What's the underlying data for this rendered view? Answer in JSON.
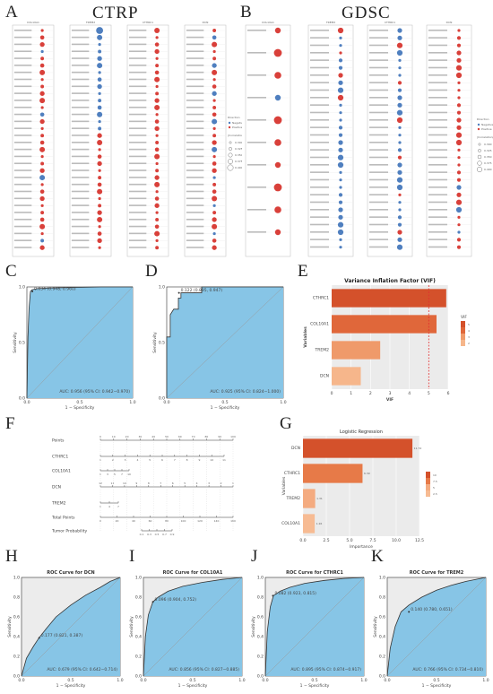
{
  "letters": {
    "A": "A",
    "B": "B",
    "C": "C",
    "D": "D",
    "E": "E",
    "F": "F",
    "G": "G",
    "H": "H",
    "I": "I",
    "J": "J",
    "K": "K"
  },
  "titles": {
    "ctrp": "CTRP",
    "gdsc": "GDSC"
  },
  "dot_panels": {
    "ctrp": [
      "COL10A1",
      "TREM2",
      "CTHRC1",
      "DCN"
    ],
    "gdsc": [
      "COL10A1",
      "TREM2",
      "CTHRC1",
      "DCN"
    ],
    "legend": {
      "direction_title": "Direction",
      "negative": "Negative",
      "positive": "Positive",
      "correlation_title": "|Correlation|",
      "corr_values": [
        "0.300",
        "0.325",
        "0.350",
        "0.375",
        "0.400"
      ],
      "colors": {
        "negative": "#4f7fbf",
        "positive": "#d9403a"
      }
    }
  },
  "chart_data": [
    {
      "id": "C",
      "type": "line",
      "xlabel": "1 − Specificity",
      "ylabel": "Sensitivity",
      "xlim": [
        0,
        1
      ],
      "ylim": [
        0,
        1
      ],
      "annotation": "0.034 (0.948, 0.960)",
      "auc_text": "AUC: 0.956 (95% CI: 0.942−0.970)",
      "x": [
        0,
        0.01,
        0.02,
        0.03,
        0.034,
        0.05,
        0.1,
        0.2,
        0.4,
        0.7,
        1.0
      ],
      "y": [
        0,
        0.55,
        0.8,
        0.92,
        0.96,
        0.975,
        0.985,
        0.99,
        0.995,
        1.0,
        1.0
      ]
    },
    {
      "id": "D",
      "type": "line",
      "xlabel": "1 − Specificity",
      "ylabel": "Sensitivity",
      "xlim": [
        0,
        1
      ],
      "ylim": [
        0,
        1
      ],
      "annotation": "0.122 (0.895, 0.947)",
      "auc_text": "AUC: 0.925 (95% CI: 0.824−1.000)",
      "x": [
        0,
        0.0,
        0.03,
        0.03,
        0.06,
        0.1,
        0.1,
        0.122,
        0.122,
        0.3,
        0.3,
        1.0
      ],
      "y": [
        0,
        0.55,
        0.55,
        0.75,
        0.8,
        0.8,
        0.9,
        0.9,
        0.947,
        0.947,
        1.0,
        1.0
      ]
    },
    {
      "id": "E",
      "type": "bar",
      "title": "Variance Inflation Factor (VIF)",
      "xlabel": "VIF",
      "ylabel": "Variables",
      "categories": [
        "CTHRC1",
        "COL10A1",
        "TREM2",
        "DCN"
      ],
      "values": [
        5.9,
        5.4,
        2.5,
        1.5
      ],
      "xlim": [
        0,
        6
      ],
      "xticks": [
        "0",
        "1",
        "2",
        "3",
        "4",
        "5",
        "6"
      ],
      "threshold": 5,
      "legend_title": "VIF",
      "legend_values": [
        "5",
        "4",
        "3",
        "2"
      ]
    },
    {
      "id": "G",
      "type": "bar",
      "title": "Logistic Regression",
      "xlabel": "Importance",
      "ylabel": "Variables",
      "categories": [
        "DCN",
        "CTHRC1",
        "TREM2",
        "COL10A1"
      ],
      "values": [
        11.74,
        6.39,
        1.31,
        1.26
      ],
      "labels": [
        "11.74",
        "6.39",
        "1.31",
        "1.26"
      ],
      "xlim": [
        0,
        12.5
      ],
      "xticks": [
        "0.0",
        "2.5",
        "5.0",
        "7.5",
        "10.0",
        "12.5"
      ],
      "legend_title": "",
      "legend_values": [
        "10",
        "7.5",
        "5",
        "2.5"
      ]
    },
    {
      "id": "H",
      "type": "line",
      "title": "ROC Curve for DCN",
      "xlabel": "1 − Specificity",
      "ylabel": "Sensitivity",
      "xlim": [
        0,
        1
      ],
      "ylim": [
        0,
        1
      ],
      "annotation": "0.177 (0.821, 0.387)",
      "auc_text": "AUC: 0.679 (95% CI: 0.642−0.714)",
      "x": [
        0,
        0.05,
        0.12,
        0.177,
        0.25,
        0.35,
        0.5,
        0.65,
        0.8,
        0.9,
        1.0
      ],
      "y": [
        0,
        0.18,
        0.3,
        0.387,
        0.48,
        0.6,
        0.72,
        0.82,
        0.9,
        0.96,
        1.0
      ]
    },
    {
      "id": "I",
      "type": "line",
      "title": "ROC Curve for COL10A1",
      "xlabel": "1 − Specificity",
      "ylabel": "Sensitivity",
      "xlim": [
        0,
        1
      ],
      "ylim": [
        0,
        1
      ],
      "annotation": "0.096 (0.904, 0.752)",
      "auc_text": "AUC: 0.856 (95% CI: 0.827−0.885)",
      "x": [
        0,
        0.02,
        0.05,
        0.096,
        0.15,
        0.25,
        0.4,
        0.6,
        0.8,
        1.0
      ],
      "y": [
        0,
        0.4,
        0.62,
        0.752,
        0.8,
        0.86,
        0.91,
        0.95,
        0.98,
        1.0
      ]
    },
    {
      "id": "J",
      "type": "line",
      "title": "ROC Curve for CTHRC1",
      "xlabel": "1 − Specificity",
      "ylabel": "Sensitivity",
      "xlim": [
        0,
        1
      ],
      "ylim": [
        0,
        1
      ],
      "annotation": "0.082 (0.923, 0.815)",
      "auc_text": "AUC: 0.895 (95% CI: 0.874−0.917)",
      "x": [
        0,
        0.02,
        0.05,
        0.082,
        0.15,
        0.25,
        0.4,
        0.6,
        0.8,
        1.0
      ],
      "y": [
        0,
        0.45,
        0.7,
        0.815,
        0.86,
        0.9,
        0.94,
        0.97,
        0.99,
        1.0
      ]
    },
    {
      "id": "K",
      "type": "line",
      "title": "ROC Curve for TREM2",
      "xlabel": "1 − Specificity",
      "ylabel": "Sensitivity",
      "xlim": [
        0,
        1
      ],
      "ylim": [
        0,
        1
      ],
      "annotation": "0.140 (0.780, 0.651)",
      "auc_text": "AUC: 0.766 (95% CI: 0.734−0.810)",
      "x": [
        0,
        0.03,
        0.08,
        0.14,
        0.22,
        0.35,
        0.5,
        0.65,
        0.8,
        1.0
      ],
      "y": [
        0,
        0.28,
        0.5,
        0.651,
        0.72,
        0.8,
        0.87,
        0.92,
        0.96,
        1.0
      ]
    }
  ],
  "nomogram": {
    "rows": [
      "Points",
      "CTHRC1",
      "COL10A1",
      "DCN",
      "TREM2",
      "Total Points",
      "Tumor Probability"
    ],
    "points_ticks": [
      "0",
      "10",
      "20",
      "30",
      "40",
      "50",
      "60",
      "70",
      "80",
      "90",
      "100"
    ],
    "cthrc1_ticks": [
      "1",
      "2",
      "3",
      "4",
      "5",
      "6",
      "7",
      "8",
      "9",
      "10",
      "11"
    ],
    "col10a1_ticks": [
      "1",
      "3",
      "5",
      "7",
      "10"
    ],
    "dcn_ticks": [
      "12",
      "11",
      "10",
      "9",
      "8",
      "7",
      "6",
      "5",
      "4",
      "3",
      "2",
      "1"
    ],
    "trem2_ticks": [
      "1",
      "4",
      "7"
    ],
    "total_ticks": [
      "0",
      "20",
      "40",
      "60",
      "80",
      "100",
      "120",
      "140",
      "160"
    ],
    "prob_ticks": [
      "0.1",
      "0.3",
      "0.5",
      "0.7",
      "0.9"
    ]
  }
}
